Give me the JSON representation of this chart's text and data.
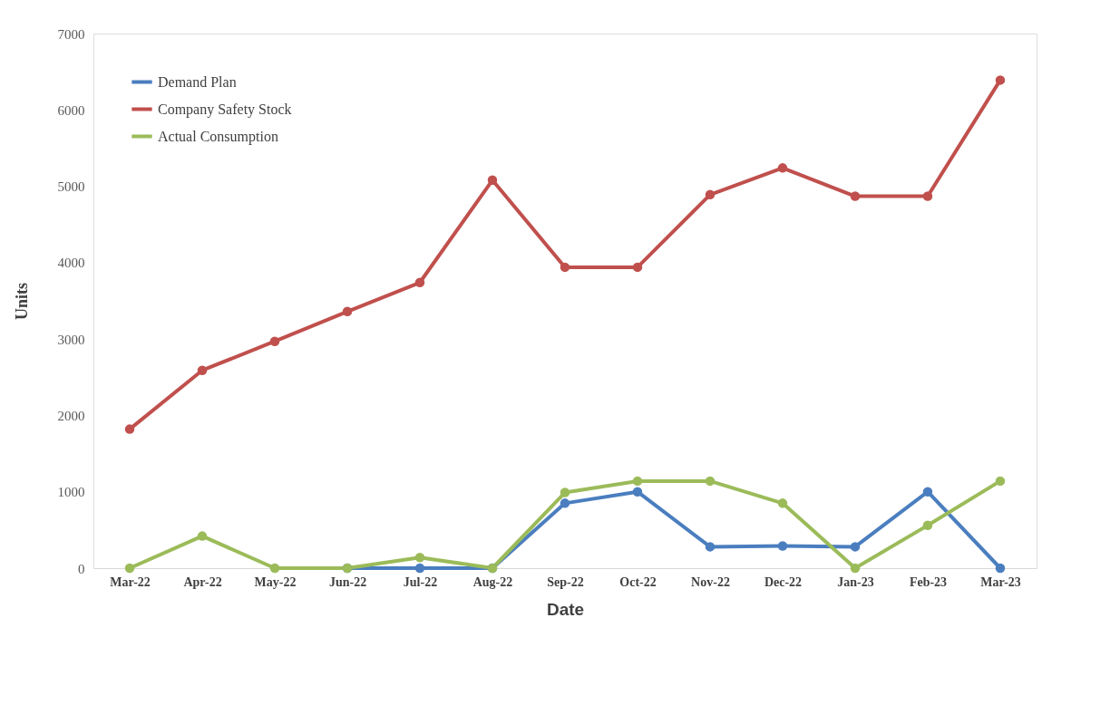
{
  "chart_data": {
    "type": "line",
    "xlabel": "Date",
    "ylabel": "Units",
    "categories": [
      "Mar-22",
      "Apr-22",
      "May-22",
      "Jun-22",
      "Jul-22",
      "Aug-22",
      "Sep-22",
      "Oct-22",
      "Nov-22",
      "Dec-22",
      "Jan-23",
      "Feb-23",
      "Mar-23"
    ],
    "series": [
      {
        "name": "Demand Plan",
        "color": "#4a7ebf",
        "values": [
          null,
          null,
          null,
          0,
          0,
          0,
          850,
          1000,
          280,
          290,
          280,
          1000,
          0
        ]
      },
      {
        "name": "Company Safety Stock",
        "color": "#c0504d",
        "values": [
          1820,
          2590,
          2970,
          3360,
          3740,
          5080,
          3940,
          3940,
          4890,
          5240,
          4870,
          4870,
          6390
        ]
      },
      {
        "name": "Actual Consumption",
        "color": "#9bbb59",
        "values": [
          0,
          420,
          0,
          0,
          140,
          0,
          990,
          1140,
          1140,
          850,
          0,
          560,
          1140
        ]
      }
    ],
    "ylim": [
      0,
      7000
    ],
    "yticks": [
      0,
      1000,
      2000,
      3000,
      4000,
      5000,
      6000,
      7000
    ],
    "grid": false,
    "legend": "top left",
    "marker": "circle",
    "line_style": "solid"
  }
}
